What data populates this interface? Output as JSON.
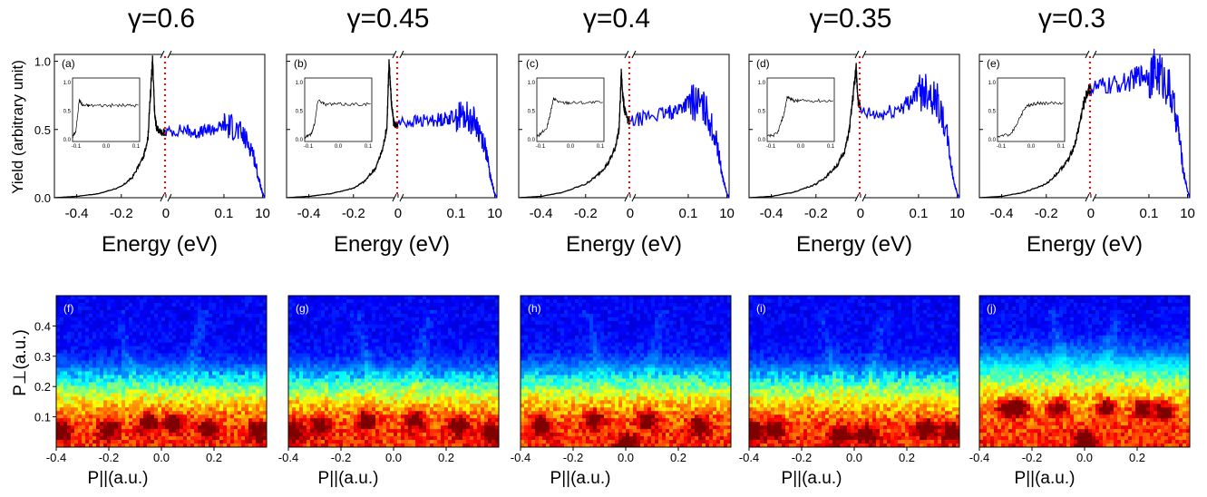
{
  "figure": {
    "top_row_ylabel": "Yield (arbitrary unit)",
    "top_row_xlabel": "Energy (eV)",
    "bottom_row_ylabel": "P⊥(a.u.)",
    "bottom_row_xlabel": "P||(a.u.)"
  },
  "chart_data": [
    {
      "type": "line",
      "panel": "(a)",
      "gamma": "γ=0.6",
      "xlabel": "Energy (eV)",
      "ylabel": "Yield (arbitrary unit)",
      "xticks_left": [
        "-0.4",
        "-0.2",
        "0"
      ],
      "xticks_right": [
        "0.1",
        "10"
      ],
      "xticks_right_values": [
        0.1,
        10
      ],
      "yticks": [
        "0.0",
        "0.5",
        "1.0"
      ],
      "ylim": [
        0,
        1.05
      ],
      "x_left_range": [
        -0.5,
        0
      ],
      "x_right_scale": "log",
      "x_right_range": [
        0.0001,
        13
      ],
      "threshold_line_x": 0,
      "series": [
        {
          "color": "#000000",
          "region": "left",
          "x": [
            -0.5,
            -0.4,
            -0.3,
            -0.2,
            -0.15,
            -0.1,
            -0.08,
            -0.07,
            -0.06,
            -0.05,
            -0.04,
            -0.02,
            0
          ],
          "y": [
            0.0,
            0.01,
            0.03,
            0.08,
            0.15,
            0.3,
            0.45,
            0.75,
            1.0,
            0.6,
            0.5,
            0.48,
            0.48
          ]
        },
        {
          "color": "#0000ff",
          "region": "right",
          "x": [
            0.0001,
            0.001,
            0.003,
            0.01,
            0.03,
            0.1,
            0.3,
            1,
            3,
            6,
            10,
            13
          ],
          "y": [
            0.48,
            0.5,
            0.47,
            0.49,
            0.5,
            0.53,
            0.52,
            0.45,
            0.35,
            0.15,
            0.03,
            0.0
          ]
        }
      ],
      "inset": {
        "xticks": [
          "-0.1",
          "0.0",
          "0.1"
        ],
        "yticks": [
          "0.0",
          "0.5",
          "1.0"
        ],
        "x": [
          -0.1,
          -0.09,
          -0.08,
          -0.07,
          -0.05,
          0,
          0.05,
          0.1
        ],
        "y": [
          0.05,
          0.15,
          0.7,
          0.6,
          0.6,
          0.6,
          0.6,
          0.6
        ]
      }
    },
    {
      "type": "line",
      "panel": "(b)",
      "gamma": "γ=0.45",
      "xlabel": "Energy (eV)",
      "ylabel": "",
      "xticks_left": [
        "-0.4",
        "-0.2",
        "0"
      ],
      "xticks_right": [
        "0.1",
        "10"
      ],
      "xticks_right_values": [
        0.1,
        10
      ],
      "yticks": [],
      "ylim": [
        0,
        1.05
      ],
      "x_left_range": [
        -0.5,
        0
      ],
      "x_right_scale": "log",
      "x_right_range": [
        0.0001,
        13
      ],
      "threshold_line_x": 0,
      "series": [
        {
          "color": "#000000",
          "region": "left",
          "x": [
            -0.5,
            -0.4,
            -0.3,
            -0.2,
            -0.15,
            -0.1,
            -0.07,
            -0.05,
            -0.04,
            -0.03,
            -0.02,
            0
          ],
          "y": [
            0.0,
            0.01,
            0.03,
            0.07,
            0.12,
            0.22,
            0.35,
            0.52,
            1.0,
            0.7,
            0.55,
            0.52
          ]
        },
        {
          "color": "#0000ff",
          "region": "right",
          "x": [
            0.0001,
            0.001,
            0.01,
            0.03,
            0.1,
            0.3,
            1,
            3,
            6,
            10,
            13
          ],
          "y": [
            0.55,
            0.56,
            0.57,
            0.58,
            0.6,
            0.6,
            0.55,
            0.4,
            0.15,
            0.03,
            0.0
          ]
        }
      ],
      "inset": {
        "xticks": [
          "-0.1",
          "0.0",
          "0.1"
        ],
        "yticks": [
          "0.0",
          "0.5",
          "1.0"
        ],
        "x": [
          -0.1,
          -0.08,
          -0.07,
          -0.06,
          -0.04,
          0,
          0.05,
          0.1
        ],
        "y": [
          0.05,
          0.1,
          0.3,
          0.7,
          0.62,
          0.62,
          0.62,
          0.62
        ]
      }
    },
    {
      "type": "line",
      "panel": "(c)",
      "gamma": "γ=0.4",
      "xlabel": "Energy (eV)",
      "ylabel": "",
      "xticks_left": [
        "-0.4",
        "-0.2",
        "0"
      ],
      "xticks_right": [
        "0.1",
        "10"
      ],
      "xticks_right_values": [
        0.1,
        10
      ],
      "yticks": [],
      "ylim": [
        0,
        1.05
      ],
      "x_left_range": [
        -0.5,
        0
      ],
      "x_right_scale": "log",
      "x_right_range": [
        0.0001,
        13
      ],
      "threshold_line_x": 0,
      "series": [
        {
          "color": "#000000",
          "region": "left",
          "x": [
            -0.5,
            -0.4,
            -0.3,
            -0.2,
            -0.15,
            -0.1,
            -0.07,
            -0.05,
            -0.04,
            -0.03,
            -0.02,
            0
          ],
          "y": [
            0.0,
            0.01,
            0.04,
            0.1,
            0.16,
            0.25,
            0.35,
            0.5,
            0.9,
            0.7,
            0.6,
            0.55
          ]
        },
        {
          "color": "#0000ff",
          "region": "right",
          "x": [
            0.0001,
            0.001,
            0.01,
            0.03,
            0.1,
            0.3,
            1,
            3,
            6,
            10,
            13
          ],
          "y": [
            0.55,
            0.6,
            0.62,
            0.65,
            0.7,
            0.7,
            0.62,
            0.4,
            0.15,
            0.03,
            0.0
          ]
        }
      ],
      "inset": {
        "xticks": [
          "-0.1",
          "0.0",
          "0.1"
        ],
        "yticks": [
          "0.0",
          "0.5",
          "1.0"
        ],
        "x": [
          -0.1,
          -0.07,
          -0.06,
          -0.05,
          -0.03,
          0,
          0.05,
          0.1
        ],
        "y": [
          0.05,
          0.2,
          0.45,
          0.72,
          0.65,
          0.65,
          0.65,
          0.65
        ]
      }
    },
    {
      "type": "line",
      "panel": "(d)",
      "gamma": "γ=0.35",
      "xlabel": "Energy (eV)",
      "ylabel": "",
      "xticks_left": [
        "-0.4",
        "-0.2",
        "0"
      ],
      "xticks_right": [
        "0.1",
        "10"
      ],
      "xticks_right_values": [
        0.1,
        10
      ],
      "yticks": [],
      "ylim": [
        0,
        1.05
      ],
      "x_left_range": [
        -0.5,
        0
      ],
      "x_right_scale": "log",
      "x_right_range": [
        0.0001,
        13
      ],
      "threshold_line_x": 0,
      "series": [
        {
          "color": "#000000",
          "region": "left",
          "x": [
            -0.5,
            -0.4,
            -0.3,
            -0.2,
            -0.15,
            -0.1,
            -0.07,
            -0.05,
            -0.03,
            -0.02,
            -0.01,
            0
          ],
          "y": [
            0.0,
            0.01,
            0.04,
            0.1,
            0.16,
            0.25,
            0.35,
            0.5,
            0.8,
            0.95,
            0.7,
            0.65
          ]
        },
        {
          "color": "#0000ff",
          "region": "right",
          "x": [
            0.0001,
            0.001,
            0.01,
            0.03,
            0.1,
            0.3,
            1,
            3,
            6,
            10,
            13
          ],
          "y": [
            0.62,
            0.6,
            0.65,
            0.7,
            0.78,
            0.8,
            0.7,
            0.45,
            0.15,
            0.03,
            0.0
          ]
        }
      ],
      "inset": {
        "xticks": [
          "-0.1",
          "0.0",
          "0.1"
        ],
        "yticks": [
          "0.0",
          "0.5",
          "1.0"
        ],
        "x": [
          -0.1,
          -0.07,
          -0.05,
          -0.04,
          -0.02,
          0,
          0.05,
          0.1
        ],
        "y": [
          0.05,
          0.1,
          0.45,
          0.75,
          0.68,
          0.68,
          0.68,
          0.68
        ]
      }
    },
    {
      "type": "line",
      "panel": "(e)",
      "gamma": "γ=0.3",
      "xlabel": "Energy (eV)",
      "ylabel": "",
      "xticks_left": [
        "-0.4",
        "-0.2",
        "0"
      ],
      "xticks_right": [
        "0.1",
        "10"
      ],
      "xticks_right_values": [
        0.1,
        10
      ],
      "yticks": [],
      "ylim": [
        0,
        1.05
      ],
      "x_left_range": [
        -0.5,
        0
      ],
      "x_right_scale": "log",
      "x_right_range": [
        0.0001,
        13
      ],
      "threshold_line_x": 0,
      "series": [
        {
          "color": "#000000",
          "region": "left",
          "x": [
            -0.5,
            -0.4,
            -0.3,
            -0.2,
            -0.15,
            -0.1,
            -0.07,
            -0.05,
            -0.03,
            -0.01,
            0
          ],
          "y": [
            0.0,
            0.01,
            0.04,
            0.1,
            0.18,
            0.28,
            0.4,
            0.55,
            0.7,
            0.8,
            0.78
          ]
        },
        {
          "color": "#0000ff",
          "region": "right",
          "x": [
            0.0001,
            0.001,
            0.01,
            0.03,
            0.1,
            0.3,
            1,
            3,
            6,
            10,
            13
          ],
          "y": [
            0.8,
            0.82,
            0.85,
            0.9,
            0.9,
            0.92,
            0.82,
            0.55,
            0.2,
            0.05,
            0.0
          ]
        }
      ],
      "inset": {
        "xticks": [
          "-0.1",
          "0.0",
          "0.1"
        ],
        "yticks": [
          "0.0",
          "0.5",
          "1.0"
        ],
        "x": [
          -0.1,
          -0.06,
          -0.04,
          -0.02,
          0,
          0.02,
          0.05,
          0.1
        ],
        "y": [
          0.05,
          0.1,
          0.3,
          0.55,
          0.62,
          0.64,
          0.64,
          0.64
        ]
      }
    },
    {
      "type": "heatmap",
      "panel": "(f)",
      "xlabel": "P||(a.u.)",
      "ylabel": "P⊥(a.u.)",
      "xlim": [
        -0.4,
        0.4
      ],
      "ylim": [
        0,
        0.5
      ],
      "xticks": [
        "-0.4",
        "-0.2",
        "0.0",
        "0.2"
      ],
      "yticks": [
        "0.1",
        "0.2",
        "0.3",
        "0.4"
      ],
      "colormap": "jet",
      "low_momentum_band_top": 0.22,
      "interference_arcs_x": [
        -0.1,
        0.1
      ],
      "hot_spots": [
        [
          -0.2,
          0.06
        ],
        [
          0.18,
          0.06
        ],
        [
          -0.05,
          0.08
        ],
        [
          0.05,
          0.08
        ],
        [
          -0.38,
          0.05
        ],
        [
          0.37,
          0.05
        ]
      ]
    },
    {
      "type": "heatmap",
      "panel": "(g)",
      "xlabel": "P||(a.u.)",
      "ylabel": "",
      "xlim": [
        -0.4,
        0.4
      ],
      "ylim": [
        0,
        0.5
      ],
      "xticks": [
        "-0.4",
        "-0.2",
        "0.0",
        "0.2"
      ],
      "yticks": [],
      "colormap": "jet",
      "low_momentum_band_top": 0.22,
      "interference_arcs_x": [
        -0.08,
        0.08
      ],
      "hot_spots": [
        [
          -0.28,
          0.07
        ],
        [
          -0.1,
          0.09
        ],
        [
          0.08,
          0.09
        ],
        [
          0.25,
          0.07
        ],
        [
          -0.38,
          0.05
        ],
        [
          0.37,
          0.05
        ]
      ]
    },
    {
      "type": "heatmap",
      "panel": "(h)",
      "xlabel": "P||(a.u.)",
      "ylabel": "",
      "xlim": [
        -0.4,
        0.4
      ],
      "ylim": [
        0,
        0.5
      ],
      "xticks": [
        "-0.4",
        "-0.2",
        "0.0",
        "0.2"
      ],
      "yticks": [],
      "colormap": "jet",
      "low_momentum_band_top": 0.23,
      "interference_arcs_x": [
        -0.08,
        0.08
      ],
      "hot_spots": [
        [
          -0.32,
          0.07
        ],
        [
          -0.12,
          0.09
        ],
        [
          0.08,
          0.09
        ],
        [
          0.28,
          0.07
        ],
        [
          0.0,
          0.01
        ]
      ]
    },
    {
      "type": "heatmap",
      "panel": "(i)",
      "xlabel": "P||(a.u.)",
      "ylabel": "",
      "xlim": [
        -0.4,
        0.4
      ],
      "ylim": [
        0,
        0.5
      ],
      "xticks": [
        "-0.4",
        "-0.2",
        "0.0",
        "0.2"
      ],
      "yticks": [],
      "colormap": "jet",
      "low_momentum_band_top": 0.22,
      "interference_arcs_x": [
        -0.06,
        0.06
      ],
      "hot_spots": [
        [
          -0.3,
          0.06
        ],
        [
          -0.05,
          0.04
        ],
        [
          0.05,
          0.04
        ],
        [
          0.27,
          0.06
        ],
        [
          -0.38,
          0.05
        ],
        [
          0.37,
          0.05
        ]
      ]
    },
    {
      "type": "heatmap",
      "panel": "(j)",
      "xlabel": "P||(a.u.)",
      "ylabel": "",
      "xlim": [
        -0.4,
        0.4
      ],
      "ylim": [
        0,
        0.5
      ],
      "xticks": [
        "-0.4",
        "-0.2",
        "0.0",
        "0.2"
      ],
      "yticks": [],
      "colormap": "jet",
      "low_momentum_band_top": 0.27,
      "interference_arcs_x": [
        -0.06,
        0.06
      ],
      "hot_spots": [
        [
          -0.25,
          0.13
        ],
        [
          -0.1,
          0.13
        ],
        [
          0.08,
          0.13
        ],
        [
          0.22,
          0.13
        ],
        [
          0.0,
          0.02
        ],
        [
          -0.3,
          0.13
        ],
        [
          0.3,
          0.12
        ]
      ]
    }
  ]
}
